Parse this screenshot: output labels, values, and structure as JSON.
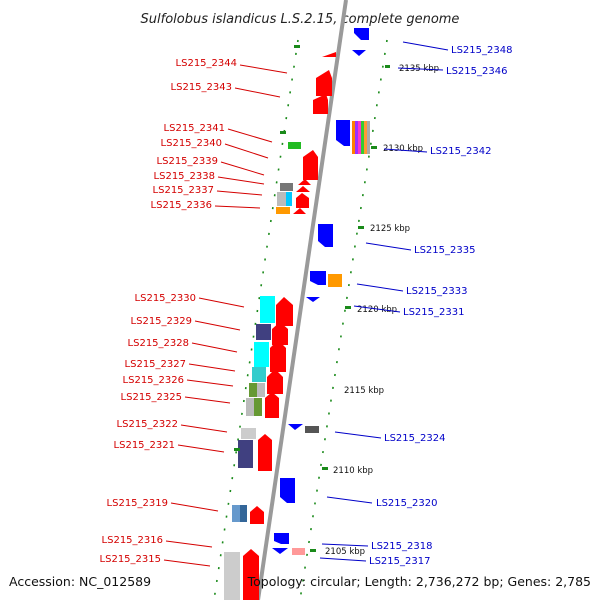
{
  "title": "Sulfolobus islandicus L.S.2.15, complete genome",
  "footer": {
    "accession": "Accession: NC_012589",
    "topology": "Topology: circular; Length: 2,736,272 bp; Genes: 2,785"
  },
  "colors": {
    "forward_gene": "#ff0000",
    "reverse_gene": "#0000ff",
    "backbone": "#999999",
    "tick_dot": "#1a8a1a",
    "label_red": "#d40000",
    "label_blue": "#0000c8"
  },
  "kbp_ticks": [
    "2135 kbp",
    "2130 kbp",
    "2125 kbp",
    "2120 kbp",
    "2115 kbp",
    "2110 kbp",
    "2105 kbp"
  ],
  "left_labels": [
    "LS215_2344",
    "LS215_2343",
    "LS215_2341",
    "LS215_2340",
    "LS215_2339",
    "LS215_2338",
    "LS215_2337",
    "LS215_2336",
    "LS215_2330",
    "LS215_2329",
    "LS215_2328",
    "LS215_2327",
    "LS215_2326",
    "LS215_2325",
    "LS215_2322",
    "LS215_2321",
    "LS215_2319",
    "LS215_2316",
    "LS215_2315"
  ],
  "right_labels": [
    "LS215_2348",
    "LS215_2346",
    "LS215_2342",
    "LS215_2335",
    "LS215_2333",
    "LS215_2331",
    "LS215_2324",
    "LS215_2320",
    "LS215_2318",
    "LS215_2317"
  ]
}
